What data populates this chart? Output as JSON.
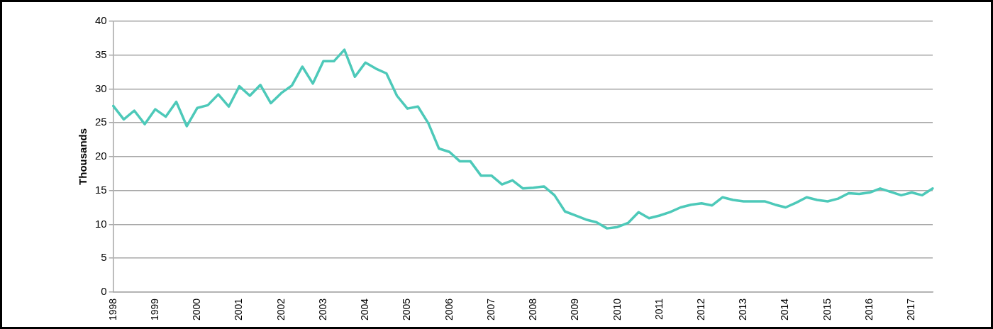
{
  "chart_data": {
    "type": "line",
    "ylabel": "Thousands",
    "categories": [
      "1998",
      null,
      null,
      null,
      "1999",
      null,
      null,
      null,
      "2000",
      null,
      null,
      null,
      "2001",
      null,
      null,
      null,
      "2002",
      null,
      null,
      null,
      "2003",
      null,
      null,
      null,
      "2004",
      null,
      null,
      null,
      "2005",
      null,
      null,
      null,
      "2006",
      null,
      null,
      null,
      "2007",
      null,
      null,
      null,
      "2008",
      null,
      null,
      null,
      "2009",
      null,
      null,
      null,
      "2010",
      null,
      null,
      null,
      "2011",
      null,
      null,
      null,
      "2012",
      null,
      null,
      null,
      "2013",
      null,
      null,
      null,
      "2014",
      null,
      null,
      null,
      "2015",
      null,
      null,
      null,
      "2016",
      null,
      null,
      null,
      "2017",
      null,
      null
    ],
    "series": [
      {
        "color": "#4dc9b9",
        "values": [
          27.5,
          25.5,
          26.8,
          24.8,
          27.0,
          25.9,
          28.1,
          24.5,
          27.2,
          27.6,
          29.2,
          27.4,
          30.4,
          29.0,
          30.6,
          27.9,
          29.4,
          30.5,
          33.3,
          30.8,
          34.1,
          34.1,
          35.8,
          31.8,
          33.9,
          33.0,
          32.3,
          29.0,
          27.1,
          27.4,
          24.9,
          21.2,
          20.7,
          19.3,
          19.3,
          17.2,
          17.2,
          15.9,
          16.5,
          15.3,
          15.4,
          15.6,
          14.3,
          11.9,
          11.3,
          10.7,
          10.3,
          9.4,
          9.6,
          10.2,
          11.8,
          10.9,
          11.3,
          11.8,
          12.5,
          12.9,
          13.1,
          12.8,
          14.0,
          13.6,
          13.4,
          13.4,
          13.4,
          12.9,
          12.5,
          13.2,
          14.0,
          13.6,
          13.4,
          13.8,
          14.6,
          14.5,
          14.7,
          15.3,
          14.8,
          14.3,
          14.7,
          14.3,
          15.3
        ]
      }
    ],
    "ylim": [
      0,
      40
    ],
    "yticks": [
      0,
      5,
      10,
      15,
      20,
      25,
      30,
      35,
      40
    ],
    "grid": "y",
    "legend": false,
    "marker": "none",
    "line_style": "solid"
  }
}
